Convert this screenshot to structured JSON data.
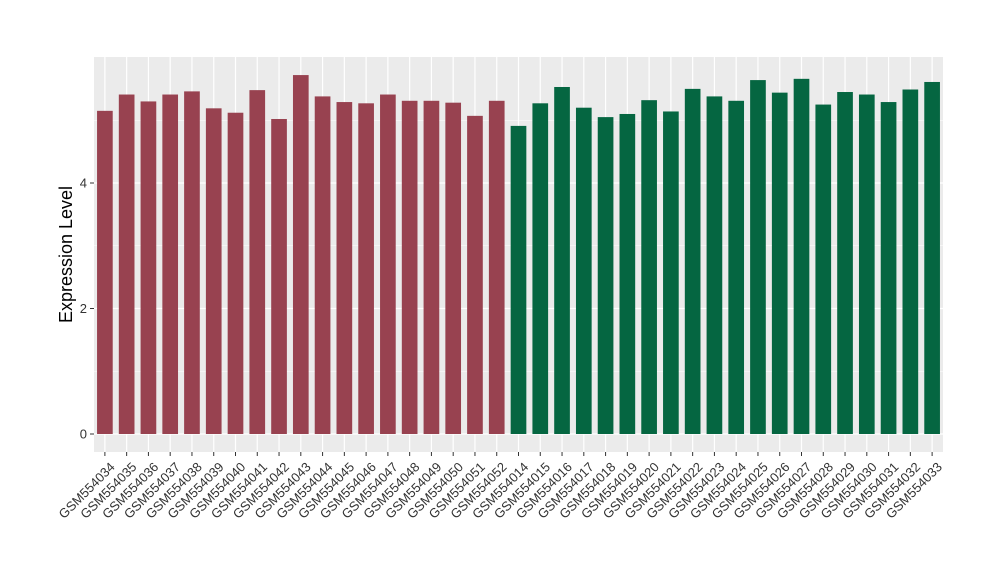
{
  "chart_data": {
    "type": "bar",
    "title": "",
    "xlabel": "",
    "ylabel": "Expression Level",
    "ylim": [
      0,
      6
    ],
    "yticks": [
      0,
      2,
      4
    ],
    "ytick_labels": [
      "0",
      "2",
      "4"
    ],
    "grid": true,
    "legend": "none",
    "panel_background": "#EBEBEB",
    "grid_color": "#FFFFFF",
    "categories": [
      "GSM554034",
      "GSM554035",
      "GSM554036",
      "GSM554037",
      "GSM554038",
      "GSM554039",
      "GSM554040",
      "GSM554041",
      "GSM554042",
      "GSM554043",
      "GSM554044",
      "GSM554045",
      "GSM554046",
      "GSM554047",
      "GSM554048",
      "GSM554049",
      "GSM554050",
      "GSM554051",
      "GSM554052",
      "GSM554014",
      "GSM554015",
      "GSM554016",
      "GSM554017",
      "GSM554018",
      "GSM554019",
      "GSM554020",
      "GSM554021",
      "GSM554022",
      "GSM554023",
      "GSM554024",
      "GSM554025",
      "GSM554026",
      "GSM554027",
      "GSM554028",
      "GSM554029",
      "GSM554030",
      "GSM554031",
      "GSM554032",
      "GSM554033"
    ],
    "values": [
      5.15,
      5.41,
      5.3,
      5.41,
      5.46,
      5.19,
      5.12,
      5.48,
      5.02,
      5.72,
      5.38,
      5.29,
      5.27,
      5.41,
      5.31,
      5.31,
      5.28,
      5.07,
      5.31,
      4.91,
      5.27,
      5.53,
      5.2,
      5.05,
      5.1,
      5.32,
      5.14,
      5.5,
      5.38,
      5.31,
      5.64,
      5.44,
      5.66,
      5.25,
      5.45,
      5.41,
      5.29,
      5.49,
      5.61
    ],
    "bar_colors": [
      "#984250",
      "#984250",
      "#984250",
      "#984250",
      "#984250",
      "#984250",
      "#984250",
      "#984250",
      "#984250",
      "#984250",
      "#984250",
      "#984250",
      "#984250",
      "#984250",
      "#984250",
      "#984250",
      "#984250",
      "#984250",
      "#984250",
      "#056641",
      "#056641",
      "#056641",
      "#056641",
      "#056641",
      "#056641",
      "#056641",
      "#056641",
      "#056641",
      "#056641",
      "#056641",
      "#056641",
      "#056641",
      "#056641",
      "#056641",
      "#056641",
      "#056641",
      "#056641",
      "#056641",
      "#056641"
    ]
  }
}
